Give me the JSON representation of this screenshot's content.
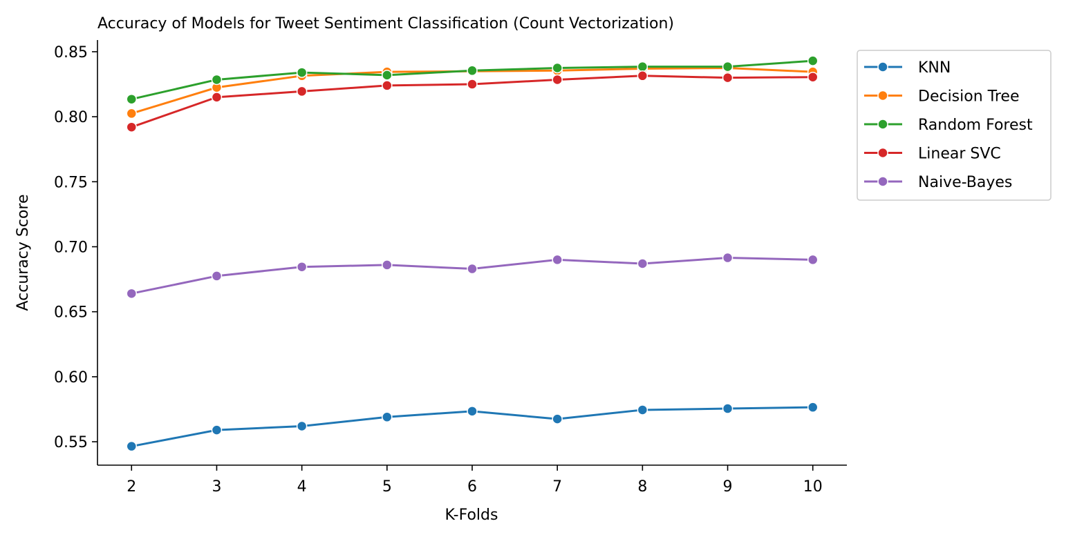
{
  "chart_data": {
    "type": "line",
    "title": "Accuracy of Models for Tweet Sentiment Classification (Count Vectorization)",
    "xlabel": "K-Folds",
    "ylabel": "Accuracy Score",
    "x": [
      2,
      3,
      4,
      5,
      6,
      7,
      8,
      9,
      10
    ],
    "x_ticks": [
      "2",
      "3",
      "4",
      "5",
      "6",
      "7",
      "8",
      "9",
      "10"
    ],
    "y_ticks": [
      "0.55",
      "0.60",
      "0.65",
      "0.70",
      "0.75",
      "0.80",
      "0.85"
    ],
    "y_tick_values": [
      0.55,
      0.6,
      0.65,
      0.7,
      0.75,
      0.8,
      0.85
    ],
    "xlim": [
      1.6,
      10.4
    ],
    "ylim": [
      0.532,
      0.859
    ],
    "grid": false,
    "legend_position": "outside-right-top",
    "series": [
      {
        "name": "KNN",
        "color": "#1f77b4",
        "values": [
          0.5465,
          0.559,
          0.562,
          0.569,
          0.5735,
          0.5675,
          0.5745,
          0.5755,
          0.5765
        ]
      },
      {
        "name": "Decision Tree",
        "color": "#ff7f0e",
        "values": [
          0.8025,
          0.8225,
          0.8315,
          0.8345,
          0.835,
          0.8355,
          0.837,
          0.8375,
          0.8345
        ]
      },
      {
        "name": "Random Forest",
        "color": "#2ca02c",
        "values": [
          0.8135,
          0.8285,
          0.834,
          0.832,
          0.8355,
          0.8375,
          0.8385,
          0.8385,
          0.843
        ]
      },
      {
        "name": "Linear SVC",
        "color": "#d62728",
        "values": [
          0.792,
          0.815,
          0.8195,
          0.824,
          0.825,
          0.8285,
          0.8315,
          0.83,
          0.8305
        ]
      },
      {
        "name": "Naive-Bayes",
        "color": "#9467bd",
        "values": [
          0.664,
          0.6775,
          0.6845,
          0.686,
          0.683,
          0.69,
          0.687,
          0.6915,
          0.69
        ]
      }
    ]
  }
}
